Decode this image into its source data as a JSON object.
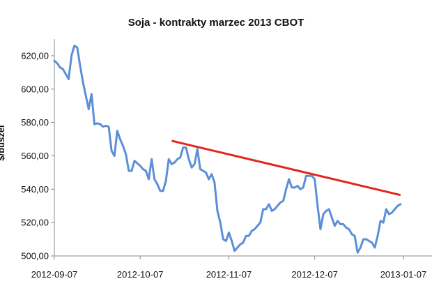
{
  "chart_data": {
    "type": "line",
    "title": "Soja - kontrakty marzec 2013 CBOT",
    "xlabel": "",
    "ylabel": "$/buszel",
    "ylim": [
      500,
      630
    ],
    "xlim": [
      "2012-09-07",
      "2013-01-17"
    ],
    "y_ticks": [
      "500,00",
      "520,00",
      "540,00",
      "560,00",
      "580,00",
      "600,00",
      "620,00"
    ],
    "x_ticks": [
      "2012-09-07",
      "2012-10-07",
      "2012-11-07",
      "2012-12-07",
      "2013-01-07"
    ],
    "grid": false,
    "legend": "none",
    "colors": {
      "series": "#5b8fd6",
      "trend": "#e3261c",
      "axis": "#8c8c8c"
    },
    "series": [
      {
        "values": [
          [
            "2012-09-07",
            617
          ],
          [
            "2012-09-08",
            615.5
          ],
          [
            "2012-09-09",
            613
          ],
          [
            "2012-09-10",
            612
          ],
          [
            "2012-09-11",
            609
          ],
          [
            "2012-09-12",
            606
          ],
          [
            "2012-09-13",
            620
          ],
          [
            "2012-09-14",
            626
          ],
          [
            "2012-09-15",
            625
          ],
          [
            "2012-09-16",
            614
          ],
          [
            "2012-09-17",
            604
          ],
          [
            "2012-09-18",
            596
          ],
          [
            "2012-09-19",
            588
          ],
          [
            "2012-09-20",
            597
          ],
          [
            "2012-09-21",
            579
          ],
          [
            "2012-09-22",
            579.5
          ],
          [
            "2012-09-23",
            579
          ],
          [
            "2012-09-24",
            577.5
          ],
          [
            "2012-09-25",
            578
          ],
          [
            "2012-09-26",
            577.5
          ],
          [
            "2012-09-27",
            563
          ],
          [
            "2012-09-28",
            560
          ],
          [
            "2012-09-29",
            575
          ],
          [
            "2012-09-30",
            570
          ],
          [
            "2012-10-01",
            566
          ],
          [
            "2012-10-02",
            561
          ],
          [
            "2012-10-03",
            551
          ],
          [
            "2012-10-04",
            551
          ],
          [
            "2012-10-05",
            557
          ],
          [
            "2012-10-06",
            555.5
          ],
          [
            "2012-10-07",
            554
          ],
          [
            "2012-10-08",
            552
          ],
          [
            "2012-10-09",
            551
          ],
          [
            "2012-10-10",
            546
          ],
          [
            "2012-10-11",
            558
          ],
          [
            "2012-10-12",
            546
          ],
          [
            "2012-10-13",
            543
          ],
          [
            "2012-10-14",
            539
          ],
          [
            "2012-10-15",
            539
          ],
          [
            "2012-10-16",
            545
          ],
          [
            "2012-10-17",
            558
          ],
          [
            "2012-10-18",
            555
          ],
          [
            "2012-10-19",
            556
          ],
          [
            "2012-10-20",
            558
          ],
          [
            "2012-10-21",
            559
          ],
          [
            "2012-10-22",
            565
          ],
          [
            "2012-10-23",
            565
          ],
          [
            "2012-10-24",
            558
          ],
          [
            "2012-10-25",
            553
          ],
          [
            "2012-10-26",
            555
          ],
          [
            "2012-10-27",
            564
          ],
          [
            "2012-10-28",
            552
          ],
          [
            "2012-10-29",
            551
          ],
          [
            "2012-10-30",
            550
          ],
          [
            "2012-10-31",
            546
          ],
          [
            "2012-11-01",
            549
          ],
          [
            "2012-11-02",
            544
          ],
          [
            "2012-11-03",
            527
          ],
          [
            "2012-11-04",
            520
          ],
          [
            "2012-11-05",
            510
          ],
          [
            "2012-11-06",
            509
          ],
          [
            "2012-11-07",
            514
          ],
          [
            "2012-11-08",
            509
          ],
          [
            "2012-11-09",
            503
          ],
          [
            "2012-11-10",
            505
          ],
          [
            "2012-11-11",
            507
          ],
          [
            "2012-11-12",
            508
          ],
          [
            "2012-11-13",
            512
          ],
          [
            "2012-11-14",
            512
          ],
          [
            "2012-11-15",
            515
          ],
          [
            "2012-11-16",
            516
          ],
          [
            "2012-11-17",
            518
          ],
          [
            "2012-11-18",
            520
          ],
          [
            "2012-11-19",
            528
          ],
          [
            "2012-11-20",
            528
          ],
          [
            "2012-11-21",
            531
          ],
          [
            "2012-11-22",
            527
          ],
          [
            "2012-11-23",
            528
          ],
          [
            "2012-11-24",
            530
          ],
          [
            "2012-11-25",
            532
          ],
          [
            "2012-11-26",
            533
          ],
          [
            "2012-11-27",
            540
          ],
          [
            "2012-11-28",
            546
          ],
          [
            "2012-11-29",
            541
          ],
          [
            "2012-11-30",
            541
          ],
          [
            "2012-12-01",
            542
          ],
          [
            "2012-12-02",
            540
          ],
          [
            "2012-12-03",
            541
          ],
          [
            "2012-12-04",
            548
          ],
          [
            "2012-12-05",
            548
          ],
          [
            "2012-12-06",
            548
          ],
          [
            "2012-12-07",
            546
          ],
          [
            "2012-12-08",
            530
          ],
          [
            "2012-12-09",
            516
          ],
          [
            "2012-12-10",
            525
          ],
          [
            "2012-12-11",
            527
          ],
          [
            "2012-12-12",
            528
          ],
          [
            "2012-12-13",
            523
          ],
          [
            "2012-12-14",
            518
          ],
          [
            "2012-12-15",
            521
          ],
          [
            "2012-12-16",
            519
          ],
          [
            "2012-12-17",
            519
          ],
          [
            "2012-12-18",
            517
          ],
          [
            "2012-12-19",
            516
          ],
          [
            "2012-12-20",
            513
          ],
          [
            "2012-12-21",
            512
          ],
          [
            "2012-12-22",
            502
          ],
          [
            "2012-12-23",
            505
          ],
          [
            "2012-12-24",
            510
          ],
          [
            "2012-12-25",
            510
          ],
          [
            "2012-12-26",
            509
          ],
          [
            "2012-12-27",
            508
          ],
          [
            "2012-12-28",
            505
          ],
          [
            "2012-12-29",
            512
          ],
          [
            "2012-12-30",
            521
          ],
          [
            "2012-12-31",
            520
          ],
          [
            "2013-01-01",
            528
          ],
          [
            "2013-01-02",
            525
          ],
          [
            "2013-01-03",
            526
          ],
          [
            "2013-01-04",
            528
          ],
          [
            "2013-01-05",
            530
          ],
          [
            "2013-01-06",
            531
          ]
        ]
      }
    ],
    "trendline": {
      "start": [
        "2012-10-18",
        569
      ],
      "end": [
        "2013-01-06",
        536.5
      ]
    }
  }
}
